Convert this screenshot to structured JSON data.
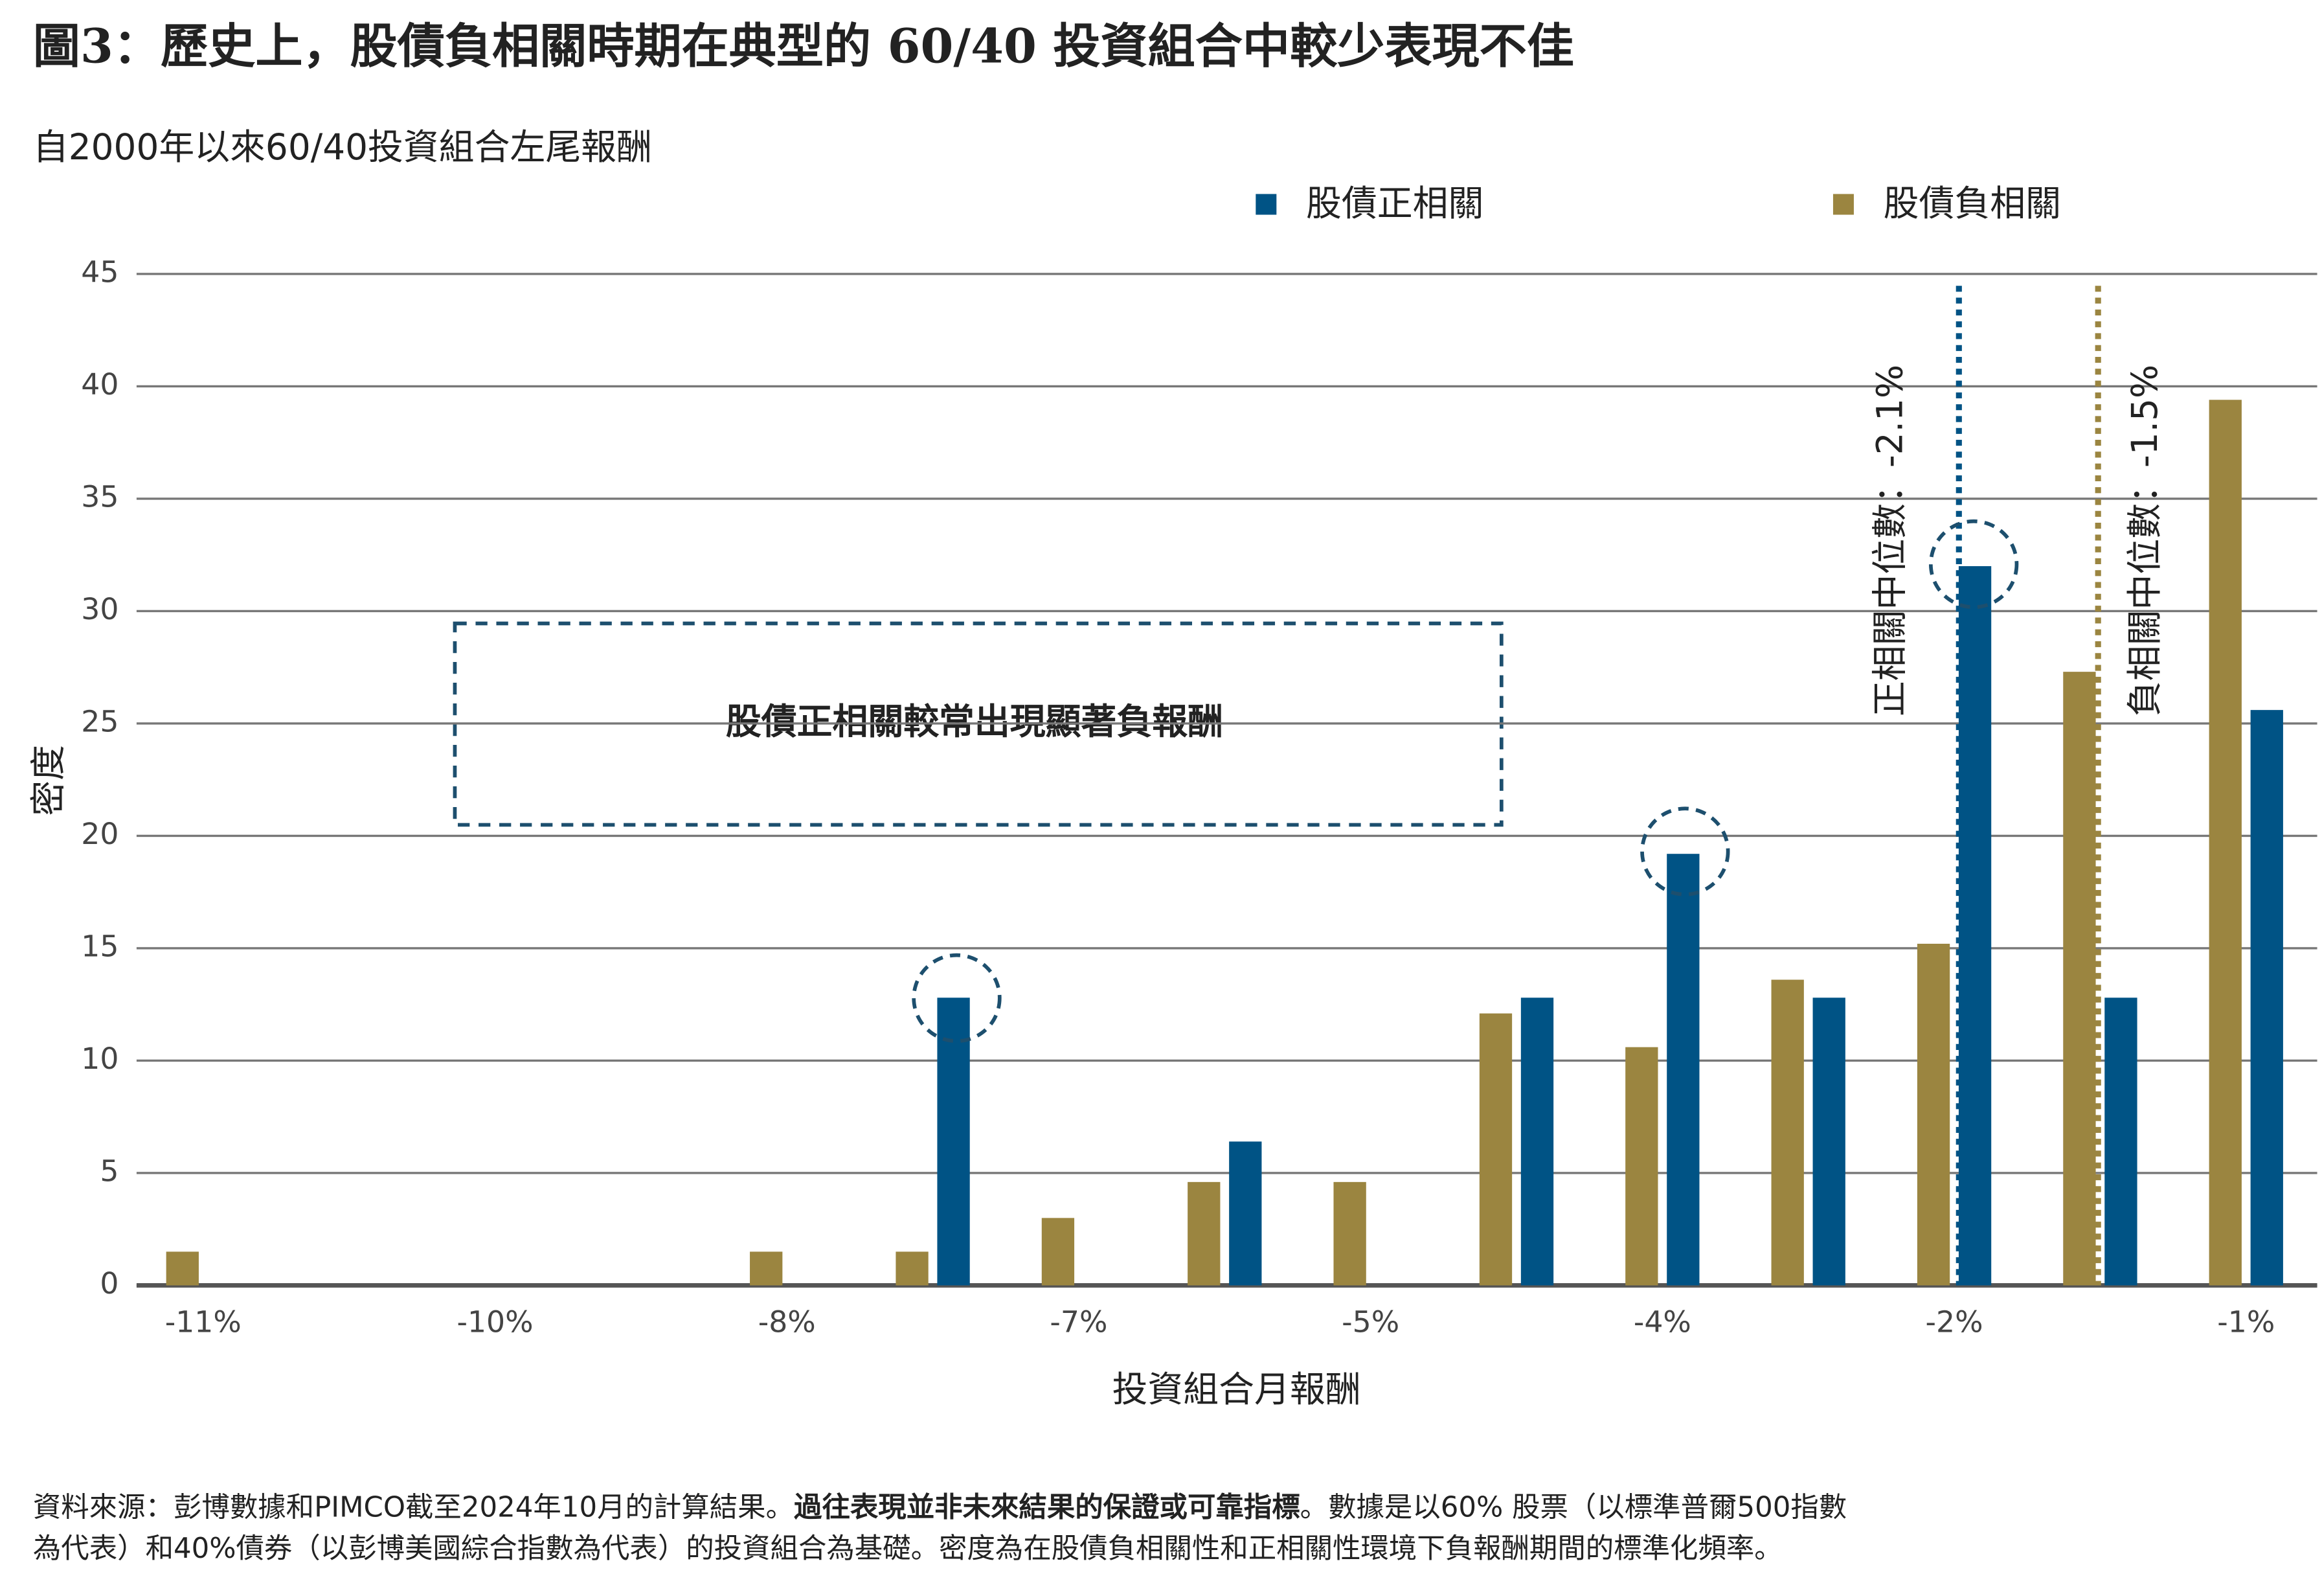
{
  "chart_data": {
    "type": "bar",
    "title": "圖3：歷史上，股債負相關時期在典型的 60/40 投資組合中較少表現不佳",
    "subtitle": "自2000年以來60/40投資組合左尾報酬",
    "ylabel": "密度",
    "xlabel": "投資組合月報酬",
    "categories": [
      "-11%",
      null,
      "-10%",
      null,
      "-8%",
      null,
      "-7%",
      null,
      "-5%",
      null,
      "-4%",
      null,
      "-2%",
      null,
      "-1%"
    ],
    "series": [
      {
        "name": "股債正相關",
        "color": "#005385",
        "values": [
          0,
          0,
          0,
          0,
          0,
          12.8,
          0,
          6.4,
          0,
          12.8,
          19.2,
          12.8,
          32,
          12.8,
          25.6
        ]
      },
      {
        "name": "股債負相關",
        "color": "#9b8540",
        "values": [
          1.5,
          0,
          0,
          0,
          1.5,
          1.5,
          3,
          4.6,
          4.6,
          12.1,
          10.6,
          13.6,
          15.2,
          27.3,
          39.4
        ]
      }
    ],
    "ylim": [
      0,
      45
    ],
    "yticks": [
      0,
      5,
      10,
      15,
      20,
      25,
      30,
      35,
      40,
      45
    ],
    "grid": true,
    "legend": "top",
    "annotations": [
      "股債正相關較常出現顯著負報酬",
      "正相關中位數：-2.1%",
      "負相關中位數：-1.5%"
    ],
    "source": [
      "資料來源：彭博數據和PIMCO截至2024年10月的計算結果。",
      "過往表現並非未來結果的保證或可靠指標",
      "。數據是以60%  股票（以標準普爾500指數",
      "為代表）和40%債券（以彭博美國綜合指數為代表）的投資組合為基礎。密度為在股債負相關性和正相關性環境下負報酬期間的標準化頻率。"
    ]
  }
}
